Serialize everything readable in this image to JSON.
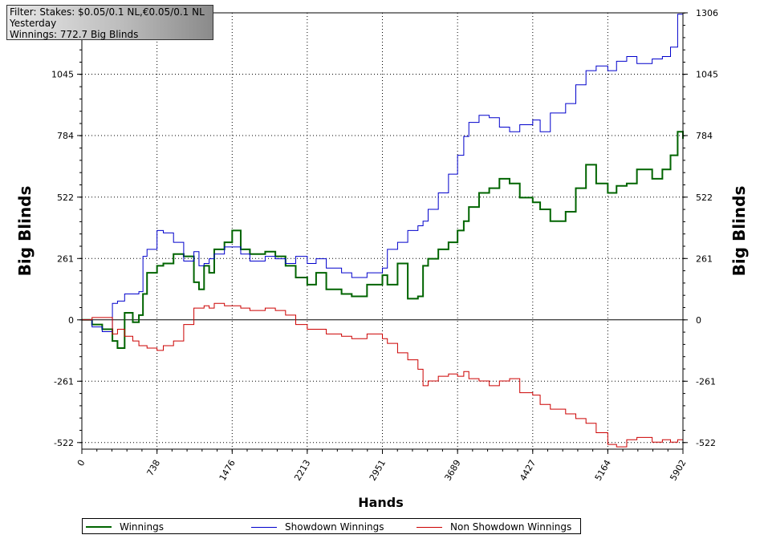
{
  "info_box": {
    "line1": "Filter: Stakes: $0.05/0.1 NL,€0.05/0.1 NL",
    "line2": "Yesterday",
    "line3": "Winnings: 772.7 Big Blinds"
  },
  "chart_data": {
    "type": "line",
    "xlabel": "Hands",
    "ylabel": "Big Blinds",
    "xlim": [
      0,
      5902
    ],
    "ylim": [
      -550,
      1306
    ],
    "x_ticks": [
      "0",
      "738",
      "1476",
      "2213",
      "2951",
      "3689",
      "4427",
      "5164",
      "5902"
    ],
    "y_ticks": [
      "1306",
      "1045",
      "784",
      "522",
      "261",
      "0",
      "-261",
      "-522"
    ],
    "grid": true,
    "legend_position": "bottom",
    "x": [
      0,
      100,
      200,
      300,
      350,
      420,
      500,
      560,
      600,
      640,
      738,
      800,
      900,
      1000,
      1100,
      1150,
      1200,
      1250,
      1300,
      1400,
      1476,
      1560,
      1650,
      1800,
      1900,
      2000,
      2100,
      2213,
      2300,
      2400,
      2550,
      2650,
      2800,
      2951,
      3000,
      3100,
      3200,
      3300,
      3350,
      3400,
      3500,
      3600,
      3689,
      3750,
      3800,
      3900,
      4000,
      4100,
      4200,
      4300,
      4427,
      4500,
      4600,
      4750,
      4850,
      4950,
      5050,
      5164,
      5250,
      5350,
      5450,
      5600,
      5700,
      5780,
      5850,
      5902
    ],
    "series": [
      {
        "name": "Winnings",
        "color": "#006400",
        "values": [
          0,
          -20,
          -40,
          -90,
          -120,
          30,
          -10,
          20,
          110,
          200,
          230,
          240,
          280,
          270,
          160,
          130,
          230,
          200,
          300,
          330,
          380,
          300,
          280,
          290,
          270,
          230,
          180,
          150,
          200,
          130,
          110,
          100,
          150,
          190,
          150,
          240,
          90,
          100,
          230,
          260,
          300,
          330,
          380,
          420,
          480,
          540,
          560,
          600,
          580,
          520,
          500,
          470,
          420,
          460,
          560,
          660,
          580,
          540,
          570,
          580,
          640,
          600,
          640,
          700,
          800,
          770
        ]
      },
      {
        "name": "Showdown Winnings",
        "color": "#0000cc",
        "values": [
          0,
          -30,
          -50,
          70,
          80,
          110,
          110,
          120,
          270,
          300,
          380,
          370,
          330,
          250,
          290,
          230,
          240,
          260,
          280,
          310,
          310,
          280,
          250,
          270,
          260,
          240,
          270,
          240,
          260,
          220,
          200,
          180,
          200,
          220,
          300,
          330,
          380,
          400,
          420,
          470,
          540,
          620,
          700,
          780,
          840,
          870,
          860,
          820,
          800,
          830,
          850,
          800,
          880,
          920,
          1000,
          1060,
          1080,
          1060,
          1100,
          1120,
          1090,
          1110,
          1120,
          1160,
          1300,
          1250
        ]
      },
      {
        "name": "Non Showdown Winnings",
        "color": "#cc0000",
        "values": [
          0,
          10,
          10,
          -60,
          -40,
          -70,
          -90,
          -110,
          -110,
          -120,
          -130,
          -110,
          -90,
          -20,
          50,
          50,
          60,
          50,
          70,
          60,
          60,
          50,
          40,
          50,
          40,
          20,
          -20,
          -40,
          -40,
          -60,
          -70,
          -80,
          -60,
          -80,
          -100,
          -140,
          -170,
          -210,
          -280,
          -260,
          -240,
          -230,
          -240,
          -220,
          -250,
          -260,
          -280,
          -260,
          -250,
          -310,
          -320,
          -360,
          -380,
          -400,
          -420,
          -440,
          -480,
          -530,
          -540,
          -510,
          -500,
          -520,
          -510,
          -520,
          -510,
          -490
        ]
      }
    ]
  }
}
